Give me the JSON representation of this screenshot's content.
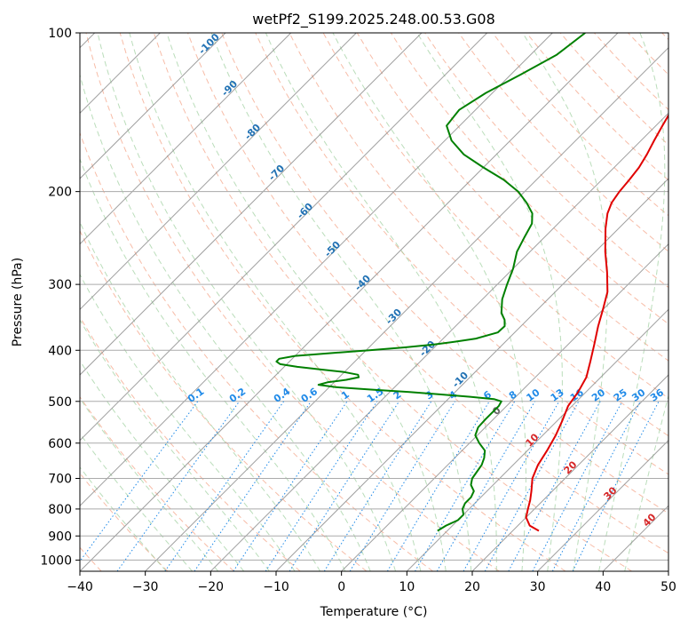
{
  "chart_data": {
    "type": "line",
    "title": "wetPf2_S199.2025.248.00.53.G08",
    "xlabel": "Temperature (°C)",
    "ylabel": "Pressure (hPa)",
    "xlim": [
      -40,
      50
    ],
    "ylim": [
      1050,
      100
    ],
    "x_ticks": [
      -40,
      -30,
      -20,
      -10,
      0,
      10,
      20,
      30,
      40,
      50
    ],
    "y_ticks": [
      100,
      200,
      300,
      400,
      500,
      600,
      700,
      800,
      900,
      1000
    ],
    "skew_factor": 27.5,
    "colors": {
      "temperature": "#e00000",
      "dewpoint": "#008000",
      "isotherm": "#888888",
      "dry_adiabat": "#f4a58a",
      "moist_adiabat": "#9ccf9c",
      "mixing_ratio": "#1f8ae8",
      "height_label": "#2272b4",
      "skew_label": "#d62728",
      "zero_label": "#666666",
      "extra_curve": "#d2b48c"
    },
    "series": [
      {
        "name": "Temperature",
        "color": "#e00000",
        "pressure": [
          880,
          860,
          830,
          800,
          770,
          740,
          700,
          660,
          620,
          580,
          545,
          510,
          480,
          450,
          420,
          390,
          360,
          335,
          310,
          285,
          260,
          235,
          220,
          210,
          200,
          190,
          180,
          170,
          160,
          150,
          140,
          130,
          120,
          112,
          105,
          100
        ],
        "values": [
          24,
          21.8,
          20,
          19,
          18,
          16.8,
          15,
          13.8,
          13,
          12,
          10.8,
          9.4,
          8.8,
          7.8,
          6,
          4,
          1.8,
          0,
          -2,
          -5,
          -8.5,
          -12,
          -14,
          -15,
          -15.5,
          -15.8,
          -16.2,
          -17,
          -18,
          -19,
          -20,
          -22,
          -24,
          -27,
          -29,
          -30
        ]
      },
      {
        "name": "Dewpoint",
        "color": "#008000",
        "pressure": [
          880,
          860,
          840,
          820,
          800,
          780,
          760,
          740,
          720,
          700,
          680,
          660,
          640,
          620,
          600,
          580,
          560,
          540,
          520,
          510,
          500,
          495,
          490,
          485,
          480,
          475,
          470,
          465,
          460,
          455,
          450,
          445,
          440,
          435,
          430,
          425,
          420,
          415,
          410,
          405,
          400,
          395,
          390,
          385,
          380,
          370,
          360,
          350,
          340,
          320,
          300,
          280,
          260,
          245,
          230,
          220,
          210,
          200,
          190,
          180,
          170,
          160,
          150,
          140,
          130,
          120,
          110,
          100
        ],
        "values": [
          8.5,
          9,
          10,
          10,
          9,
          8.5,
          8.5,
          8,
          6.6,
          5.8,
          5.5,
          5.2,
          4.5,
          3.5,
          1.5,
          -0.3,
          -1.1,
          -1.2,
          -1.2,
          -1.2,
          -1.5,
          -3,
          -7,
          -12,
          -17,
          -23,
          -29,
          -32,
          -31,
          -28.5,
          -27,
          -27.5,
          -30,
          -34,
          -38,
          -41,
          -42,
          -42,
          -40,
          -35,
          -29.5,
          -24.5,
          -20.5,
          -17.5,
          -15,
          -12.6,
          -12.5,
          -13.5,
          -15,
          -17,
          -18.5,
          -20,
          -22,
          -23,
          -24,
          -25.5,
          -28,
          -31,
          -35,
          -40,
          -45,
          -49,
          -52,
          -52.5,
          -51,
          -48.5,
          -46,
          -45
        ]
      }
    ],
    "isotherm_labels": [
      "-100",
      "-90",
      "-80",
      "-70",
      "-60",
      "-50",
      "-40",
      "-30",
      "-20",
      "-10",
      "0",
      "10",
      "20",
      "30",
      "40"
    ],
    "mixing_ratio_labels": [
      "0.1",
      "0.2",
      "0.4",
      "0.6",
      "1",
      "1.5",
      "2",
      "3",
      "4",
      "6",
      "8",
      "10",
      "13",
      "16",
      "20",
      "25",
      "30",
      "36"
    ]
  }
}
